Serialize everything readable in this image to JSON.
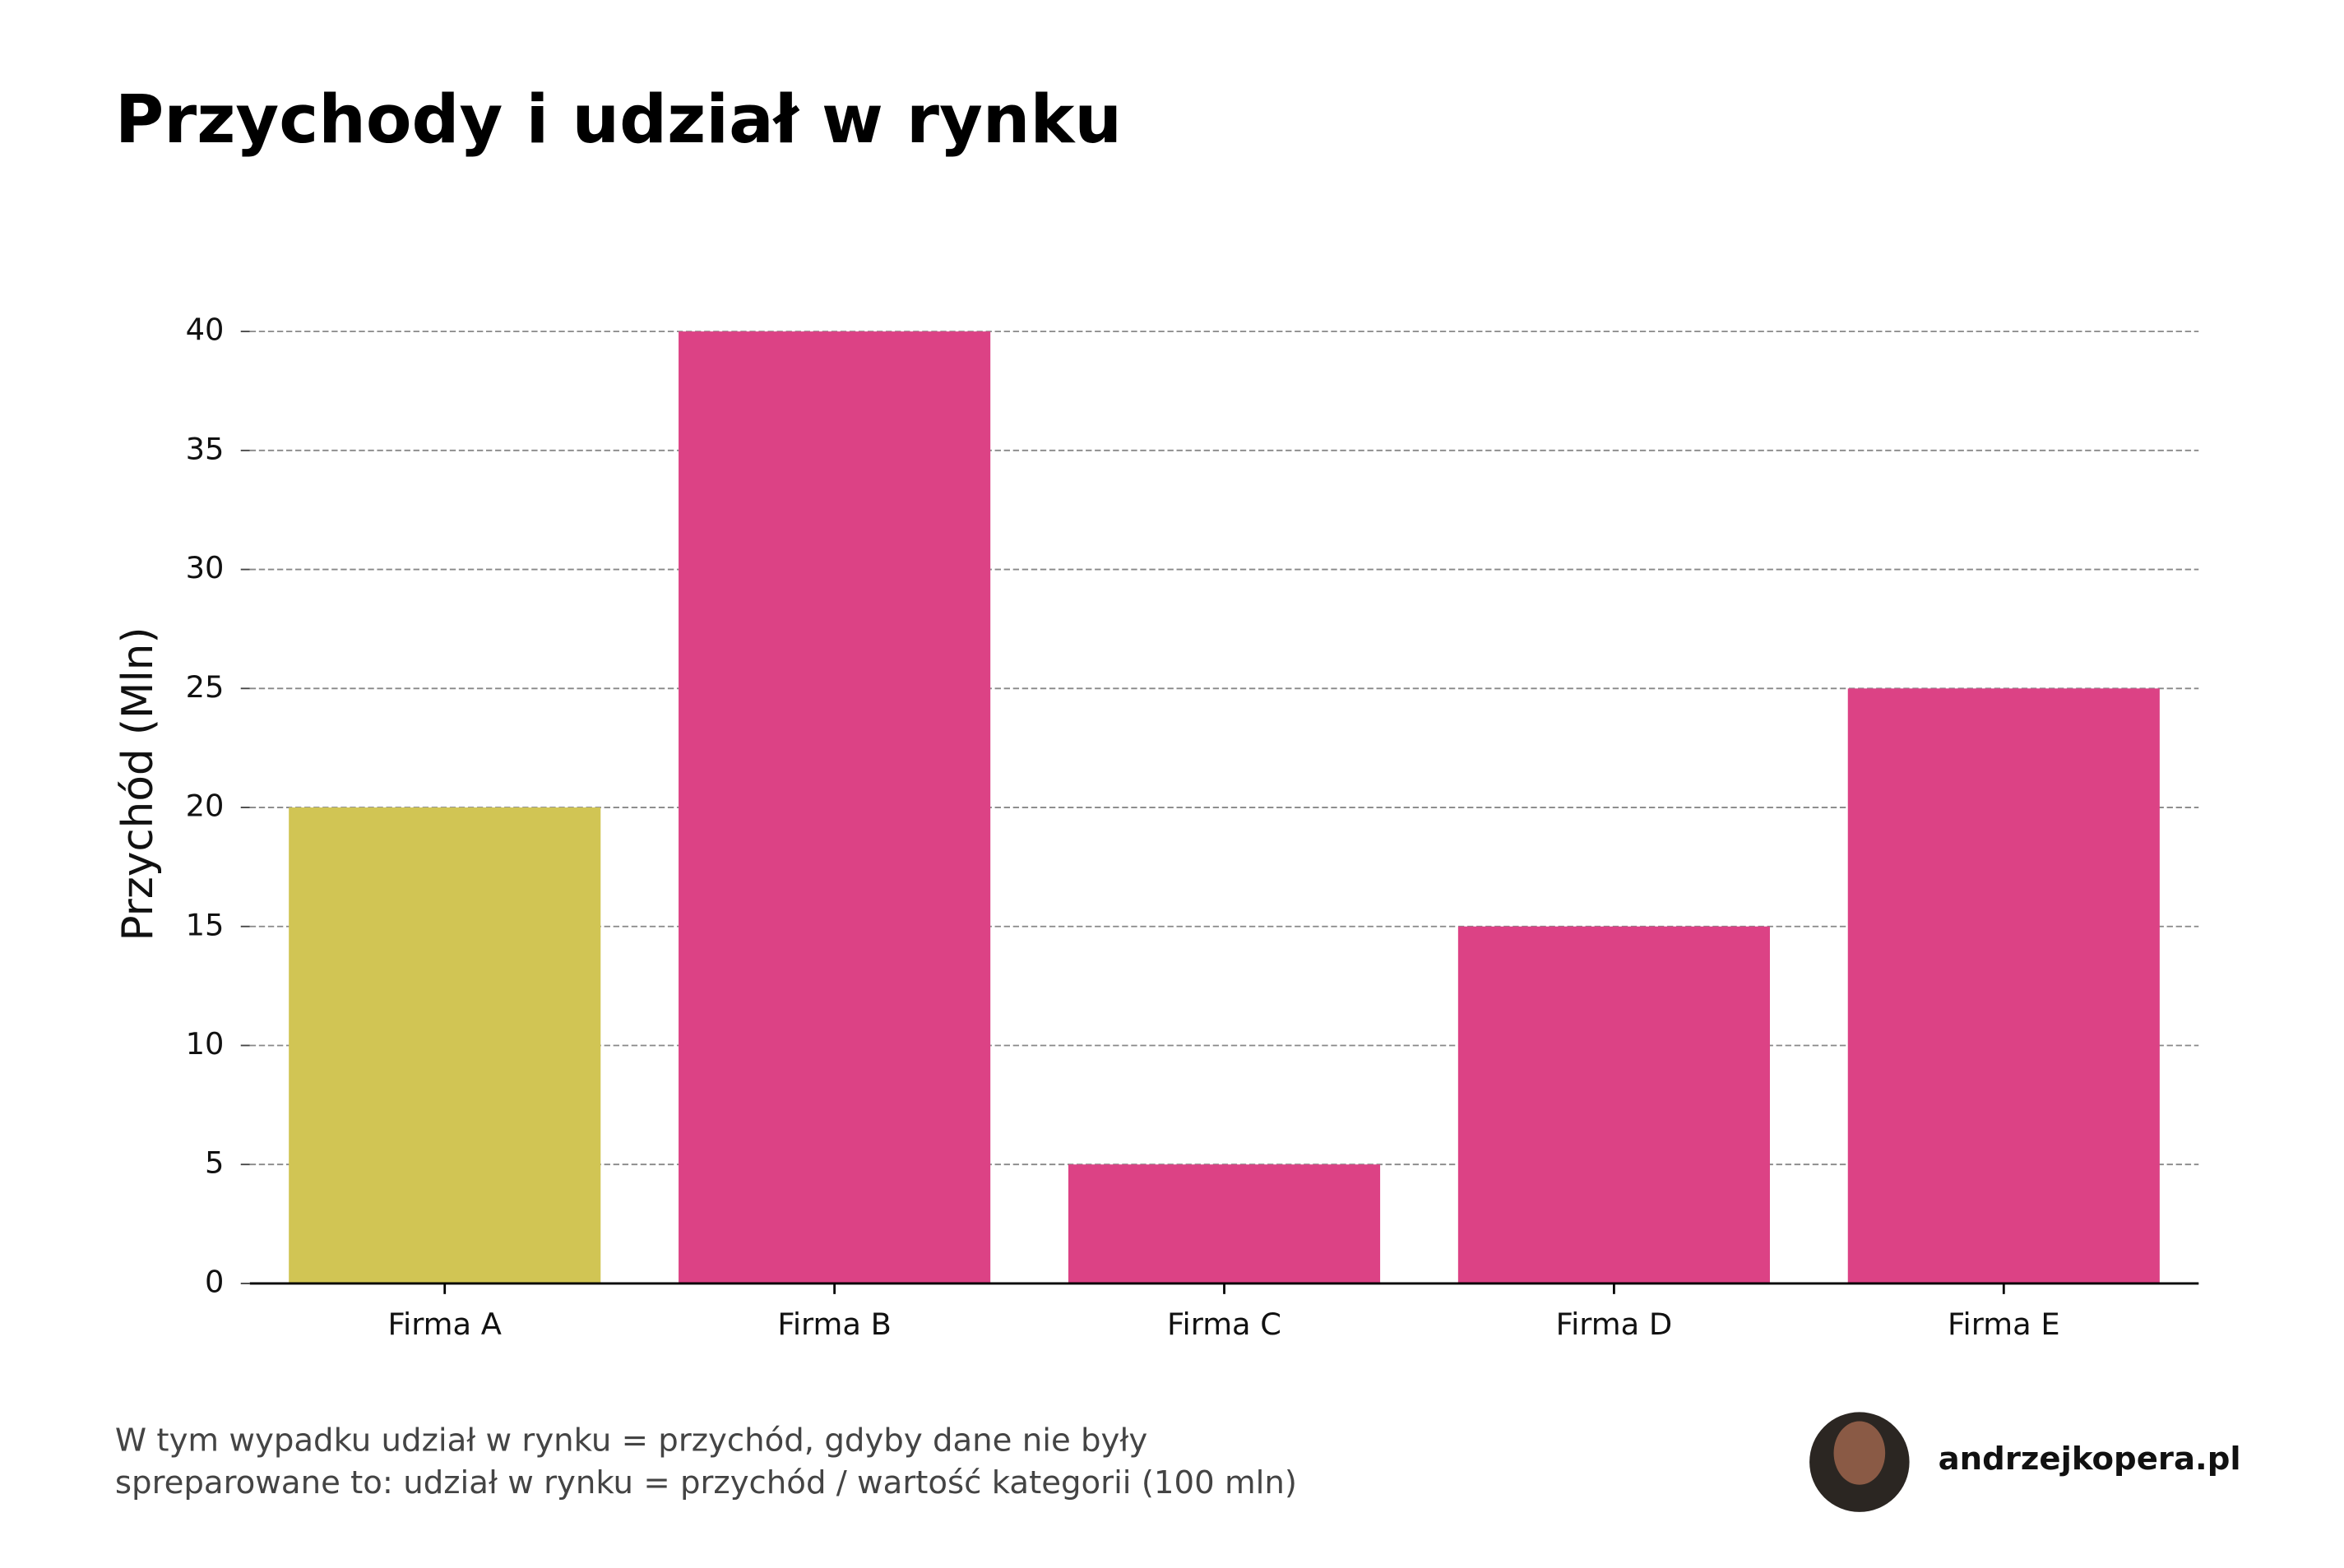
{
  "chart_data": {
    "type": "bar",
    "title": "Przychody i udział w rynku",
    "ylabel": "Przychód (Mln)",
    "categories": [
      "Firma A",
      "Firma B",
      "Firma C",
      "Firma D",
      "Firma E"
    ],
    "values": [
      20,
      40,
      5,
      15,
      25
    ],
    "colors": [
      "#d1c554",
      "#dc4285",
      "#dc4285",
      "#dc4285",
      "#dc4285"
    ],
    "ylim": [
      0,
      40
    ],
    "yticks": [
      0,
      5,
      10,
      15,
      20,
      25,
      30,
      35,
      40
    ],
    "grid": true
  },
  "footer": {
    "note": [
      "W tym wypadku udział w rynku = przychód, gdyby dane nie były",
      "spreparowane to: udział w rynku = przychód / wartość kategorii (100 mln)"
    ],
    "brand": "andrzejkopera.pl"
  }
}
